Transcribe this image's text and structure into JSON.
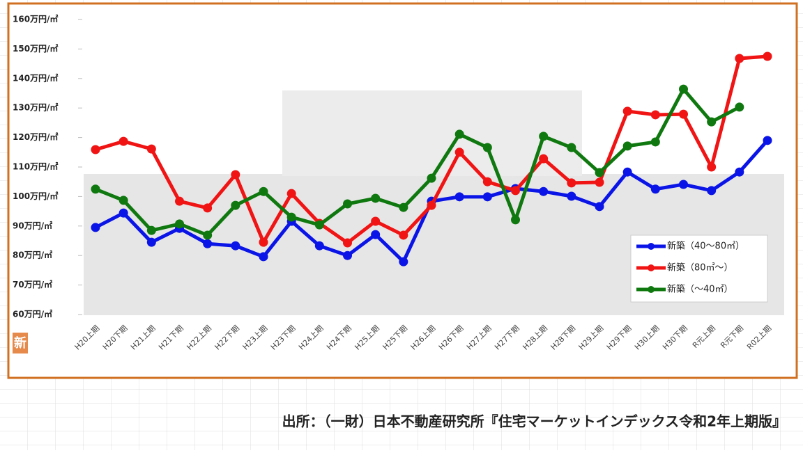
{
  "chart_data": {
    "type": "line",
    "categories": [
      "H20上期",
      "H20下期",
      "H21上期",
      "H21下期",
      "H22上期",
      "H22下期",
      "H23上期",
      "H23下期",
      "H24上期",
      "H24下期",
      "H25上期",
      "H25下期",
      "H26上期",
      "H26下期",
      "H27上期",
      "H27下期",
      "H28上期",
      "H28下期",
      "H29上期",
      "H29下期",
      "H30上期",
      "H30下期",
      "R元上期",
      "R元下期",
      "R02上期"
    ],
    "series": [
      {
        "name": "新築（40～80㎡）",
        "color": "#0a14e6",
        "values": [
          89.5,
          94.4,
          84.5,
          89.2,
          84.0,
          83.3,
          79.6,
          91.6,
          83.3,
          80.0,
          87.1,
          77.9,
          98.4,
          99.9,
          99.9,
          102.7,
          101.7,
          100.1,
          96.6,
          108.3,
          102.5,
          104.1,
          102.0,
          108.3,
          119.0
        ]
      },
      {
        "name": "新築（80㎡～）",
        "color": "#f01414",
        "values": [
          115.9,
          118.7,
          116.1,
          98.4,
          96.1,
          107.4,
          84.5,
          101.0,
          90.9,
          84.3,
          91.6,
          86.9,
          97.0,
          115.0,
          105.0,
          102.0,
          112.8,
          104.6,
          104.8,
          128.9,
          127.7,
          127.9,
          110.0,
          146.8,
          147.5
        ]
      },
      {
        "name": "新築（～40㎡）",
        "color": "#0f780f",
        "values": [
          102.5,
          98.7,
          88.5,
          90.7,
          86.9,
          97.0,
          101.7,
          93.0,
          90.4,
          97.5,
          99.4,
          96.3,
          106.2,
          121.1,
          116.6,
          92.1,
          120.4,
          116.6,
          108.1,
          117.1,
          118.5,
          136.4,
          125.3,
          130.3,
          null
        ]
      }
    ],
    "ylim": [
      60,
      160
    ],
    "yticks": [
      {
        "value": 60,
        "label": "60万円/㎡"
      },
      {
        "value": 70,
        "label": "70万円/㎡"
      },
      {
        "value": 80,
        "label": "80万円/㎡"
      },
      {
        "value": 90,
        "label": "90万円/㎡"
      },
      {
        "value": 100,
        "label": "100万円/㎡"
      },
      {
        "value": 110,
        "label": "110万円/㎡"
      },
      {
        "value": 120,
        "label": "120万円/㎡"
      },
      {
        "value": 130,
        "label": "130万円/㎡"
      },
      {
        "value": 140,
        "label": "140万円/㎡"
      },
      {
        "value": 150,
        "label": "150万円/㎡"
      },
      {
        "value": 160,
        "label": "160万円/㎡"
      }
    ],
    "legend": "lower right",
    "badge": "新",
    "source": "出所：（一財）日本不動産研究所『住宅マーケットインデックス令和2年上期版』"
  }
}
